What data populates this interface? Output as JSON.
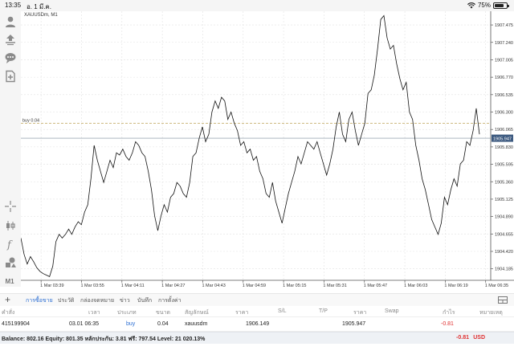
{
  "status_bar": {
    "time": "13:35",
    "date": "อ. 1 มี.ค.",
    "battery": "75%",
    "battery_level": 0.75
  },
  "toolbar": {
    "items": [
      "account-icon",
      "trade-icon",
      "chat-icon",
      "new-order-icon",
      "crosshair-icon",
      "candles-icon",
      "indicator-icon",
      "objects-icon"
    ],
    "timeframe": "M1"
  },
  "chart": {
    "symbol": "XAUUSDm, M1",
    "order_line_label": "buy 0.04",
    "order_level": 1906.149,
    "current_price_label": "1905.947",
    "colors": {
      "line": "#111111",
      "order_line": "#c8b070",
      "price_line": "#7a8a9a",
      "price_tag": "#3d5a80",
      "grid": "#e2e2e2"
    }
  },
  "chart_data": {
    "type": "line",
    "title": "XAUUSDm, M1",
    "y_ticks": [
      "1907.475",
      "1907.240",
      "1907.005",
      "1906.770",
      "1906.535",
      "1906.300",
      "1906.065",
      "1905.830",
      "1905.595",
      "1905.360",
      "1905.125",
      "1904.890",
      "1904.655",
      "1904.420",
      "1904.185"
    ],
    "x_ticks": [
      "1 Mar 03:39",
      "1 Mar 03:55",
      "1 Mar 04:11",
      "1 Mar 04:27",
      "1 Mar 04:43",
      "1 Mar 04:59",
      "1 Mar 05:15",
      "1 Mar 05:31",
      "1 Mar 05:47",
      "1 Mar 06:03",
      "1 Mar 06:19",
      "1 Mar 06:35"
    ],
    "ylim": [
      1904.03,
      1907.66
    ],
    "x_start": "1 Mar 03:31",
    "x_end": "1 Mar 06:37",
    "grid": true,
    "series": [
      {
        "values": [
          1904.6,
          1904.38,
          1904.25,
          1904.35,
          1904.28,
          1904.2,
          1904.15,
          1904.12,
          1904.1,
          1904.08,
          1904.22,
          1904.55,
          1904.65,
          1904.6,
          1904.65,
          1904.72,
          1904.65,
          1904.75,
          1904.82,
          1904.78,
          1904.95,
          1905.05,
          1905.4,
          1905.85,
          1905.65,
          1905.5,
          1905.35,
          1905.5,
          1905.65,
          1905.55,
          1905.75,
          1905.72,
          1905.8,
          1905.7,
          1905.65,
          1905.75,
          1905.9,
          1905.85,
          1905.75,
          1905.7,
          1905.5,
          1905.25,
          1904.9,
          1904.7,
          1904.9,
          1905.05,
          1904.95,
          1905.15,
          1905.2,
          1905.35,
          1905.3,
          1905.2,
          1905.15,
          1905.35,
          1905.7,
          1905.75,
          1905.95,
          1906.1,
          1905.9,
          1906.0,
          1906.3,
          1906.45,
          1906.35,
          1906.5,
          1906.45,
          1906.2,
          1906.3,
          1906.15,
          1906.05,
          1905.85,
          1905.9,
          1905.75,
          1905.8,
          1905.65,
          1905.7,
          1905.5,
          1905.4,
          1905.2,
          1905.15,
          1905.35,
          1905.1,
          1904.95,
          1904.8,
          1905.0,
          1905.2,
          1905.35,
          1905.5,
          1905.7,
          1905.6,
          1905.75,
          1905.9,
          1905.85,
          1905.8,
          1905.9,
          1905.75,
          1905.6,
          1905.45,
          1905.6,
          1905.8,
          1906.1,
          1906.3,
          1906.0,
          1905.9,
          1906.2,
          1906.3,
          1906.05,
          1905.85,
          1906.0,
          1906.15,
          1906.55,
          1906.6,
          1906.8,
          1907.15,
          1907.55,
          1907.6,
          1907.3,
          1907.15,
          1907.2,
          1906.95,
          1906.75,
          1906.6,
          1906.7,
          1906.3,
          1906.2,
          1905.85,
          1905.65,
          1905.4,
          1905.25,
          1905.05,
          1904.85,
          1904.75,
          1904.65,
          1904.8,
          1905.15,
          1905.05,
          1905.25,
          1905.4,
          1905.3,
          1905.6,
          1905.65,
          1905.9,
          1905.85,
          1906.05,
          1906.35,
          1906.0
        ]
      }
    ]
  },
  "bottom_tabs": {
    "items": [
      "การซื้อขาย",
      "ประวัติ",
      "กล่องจดหมาย",
      "ข่าว",
      "บันทึก",
      "การตั้งค่า"
    ],
    "active": 0
  },
  "table": {
    "columns": [
      "คำสั่ง",
      "เวลา",
      "ประเภท",
      "ขนาด",
      "สัญลักษณ์",
      "ราคา",
      "S/L",
      "T/P",
      "ราคา",
      "Swap",
      "กำไร",
      "หมายเหตุ"
    ],
    "rows": [
      {
        "order": "415199904",
        "time": "03.01 06:35",
        "type": "buy",
        "size": "0.04",
        "symbol": "xauusdm",
        "price": "1906.149",
        "sl": "",
        "tp": "",
        "current_price": "1905.947",
        "swap": "",
        "profit": "-0.81",
        "comment": ""
      }
    ]
  },
  "balance_bar": {
    "text": "Balance: 802.16 Equity: 801.35 หลักประกัน: 3.81 ฟรี: 797.54 Level: 21 020.13%",
    "profit": "-0.81",
    "currency": "USD"
  }
}
